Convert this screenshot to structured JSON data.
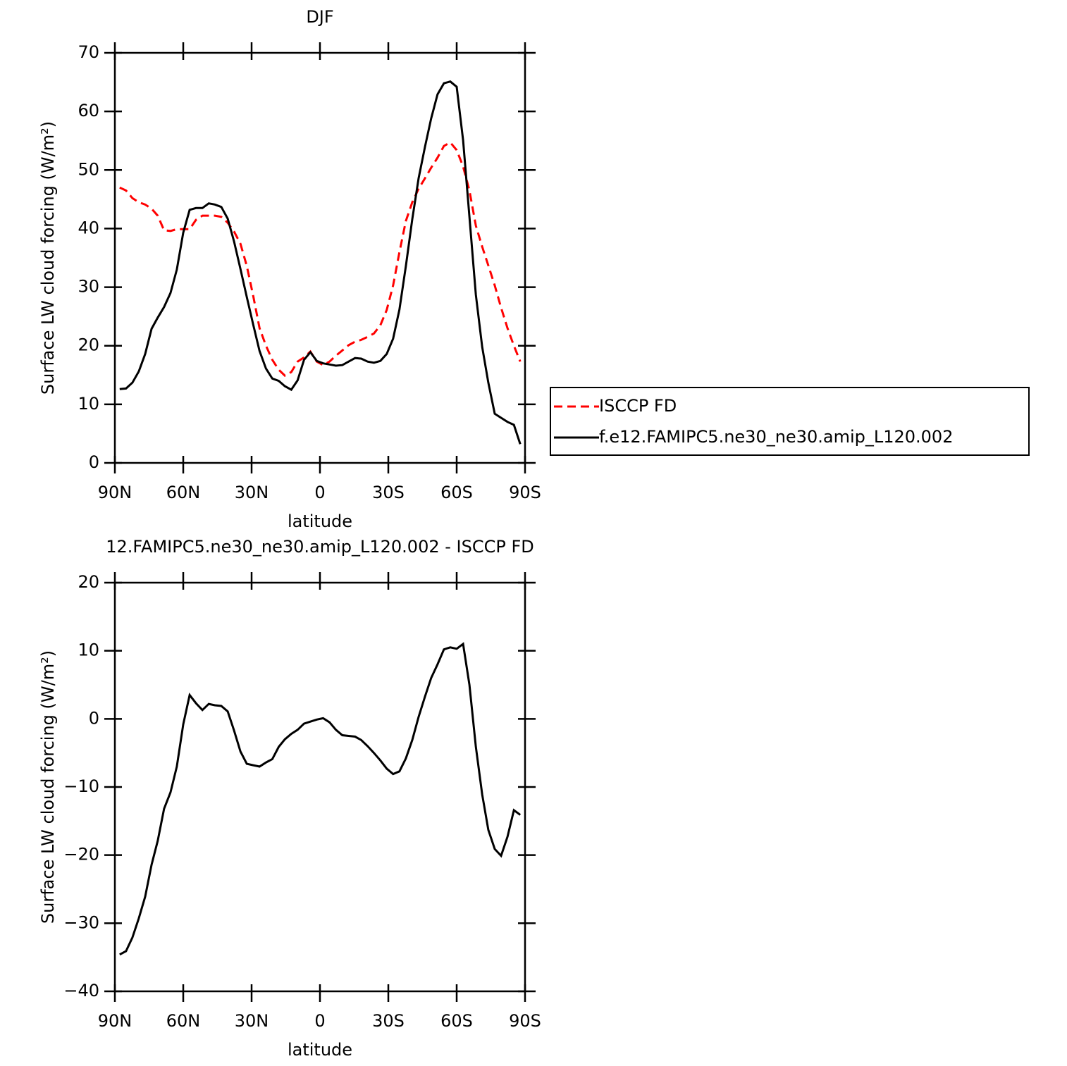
{
  "chart_data": [
    {
      "type": "line",
      "title": "DJF",
      "xlabel": "latitude",
      "ylabel": "Surface LW cloud forcing (W/m²)",
      "x": [
        87.9,
        85.1,
        82.3,
        79.5,
        76.7,
        73.9,
        71.2,
        68.4,
        65.6,
        62.8,
        60.0,
        57.2,
        54.4,
        51.6,
        48.8,
        46.1,
        43.3,
        40.5,
        37.7,
        34.9,
        32.1,
        29.3,
        26.5,
        23.7,
        20.9,
        18.1,
        15.4,
        12.6,
        9.8,
        7.0,
        4.2,
        1.4,
        -1.4,
        -4.2,
        -7.0,
        -9.8,
        -12.6,
        -15.4,
        -18.1,
        -20.9,
        -23.7,
        -26.5,
        -29.3,
        -32.1,
        -34.9,
        -37.7,
        -40.5,
        -43.3,
        -46.1,
        -48.8,
        -51.6,
        -54.4,
        -57.2,
        -60.0,
        -62.8,
        -65.6,
        -68.4,
        -71.2,
        -73.9,
        -76.7,
        -79.5,
        -82.3,
        -85.1,
        -87.9
      ],
      "series": [
        {
          "name": "ISCCP FD",
          "color": "#ff0000",
          "linestyle": "dashed",
          "values": [
            47.0,
            46.5,
            45.2,
            44.5,
            44.1,
            43.4,
            42.2,
            39.7,
            39.6,
            39.9,
            39.9,
            39.9,
            41.5,
            42.2,
            42.2,
            42.2,
            42.0,
            41.0,
            39.5,
            37.4,
            33.6,
            28.5,
            23.0,
            20.0,
            17.6,
            15.9,
            14.9,
            15.5,
            17.3,
            18.0,
            19.0,
            17.3,
            16.7,
            17.3,
            18.3,
            19.2,
            20.1,
            20.7,
            21.0,
            21.5,
            22.1,
            23.5,
            26.1,
            30.3,
            36.0,
            41.3,
            44.5,
            46.8,
            48.6,
            50.4,
            52.1,
            54.1,
            54.7,
            53.4,
            50.6,
            46.5,
            40.5,
            36.9,
            33.7,
            30.3,
            26.5,
            23.0,
            20.0,
            17.3
          ]
        },
        {
          "name": "f.e12.FAMIPC5.ne30_ne30.amip_L120.002",
          "color": "#000000",
          "linestyle": "solid",
          "values": [
            12.6,
            12.7,
            13.7,
            15.6,
            18.6,
            22.9,
            24.8,
            26.6,
            29.0,
            33.0,
            39.3,
            43.2,
            43.5,
            43.5,
            44.3,
            44.1,
            43.7,
            41.7,
            37.8,
            33.1,
            28.3,
            23.6,
            19.1,
            16.1,
            14.4,
            14.0,
            13.1,
            12.5,
            14.1,
            17.6,
            18.9,
            17.4,
            17.0,
            16.8,
            16.6,
            16.7,
            17.3,
            17.9,
            17.8,
            17.3,
            17.1,
            17.4,
            18.6,
            21.2,
            26.2,
            33.6,
            41.6,
            48.6,
            54.0,
            58.8,
            62.9,
            64.8,
            65.1,
            64.2,
            55.1,
            42.0,
            28.7,
            19.8,
            13.7,
            8.4,
            7.7,
            7.0,
            6.5,
            3.2
          ]
        }
      ],
      "xlim": [
        90,
        -90
      ],
      "xticks": [
        {
          "value": 90,
          "label": "90N"
        },
        {
          "value": 60,
          "label": "60N"
        },
        {
          "value": 30,
          "label": "30N"
        },
        0,
        {
          "value": -30,
          "label": "30S"
        },
        {
          "value": -60,
          "label": "60S"
        },
        {
          "value": -90,
          "label": "90S"
        }
      ],
      "ylim": [
        0,
        70
      ],
      "yticks": [
        0,
        10,
        20,
        30,
        40,
        50,
        60,
        70
      ],
      "legend": "outside right"
    },
    {
      "type": "line",
      "title": "12.FAMIPC5.ne30_ne30.amip_L120.002 - ISCCP FD",
      "xlabel": "latitude",
      "ylabel": "Surface LW cloud forcing (W/m²)",
      "x": [
        87.9,
        85.1,
        82.3,
        79.5,
        76.7,
        73.9,
        71.2,
        68.4,
        65.6,
        62.8,
        60.0,
        57.2,
        54.4,
        51.6,
        48.8,
        46.1,
        43.3,
        40.5,
        37.7,
        34.9,
        32.1,
        29.3,
        26.5,
        23.7,
        20.9,
        18.1,
        15.4,
        12.6,
        9.8,
        7.0,
        4.2,
        1.4,
        -1.4,
        -4.2,
        -7.0,
        -9.8,
        -12.6,
        -15.4,
        -18.1,
        -20.9,
        -23.7,
        -26.5,
        -29.3,
        -32.1,
        -34.9,
        -37.7,
        -40.5,
        -43.3,
        -46.1,
        -48.8,
        -51.6,
        -54.4,
        -57.2,
        -60.0,
        -62.8,
        -65.6,
        -68.4,
        -71.2,
        -73.9,
        -76.7,
        -79.5,
        -82.3,
        -85.1,
        -87.9
      ],
      "values": [
        -34.6,
        -34.1,
        -32.1,
        -29.3,
        -26.1,
        -21.4,
        -17.9,
        -13.2,
        -10.8,
        -7.0,
        -0.8,
        3.5,
        2.3,
        1.3,
        2.2,
        2.0,
        1.9,
        1.1,
        -1.7,
        -4.8,
        -6.6,
        -6.8,
        -7.0,
        -6.4,
        -5.9,
        -4.1,
        -3.0,
        -2.2,
        -1.6,
        -0.7,
        -0.4,
        -0.1,
        0.1,
        -0.5,
        -1.6,
        -2.4,
        -2.5,
        -2.6,
        -3.1,
        -4.0,
        -5.0,
        -6.1,
        -7.3,
        -8.1,
        -7.7,
        -5.8,
        -3.1,
        0.3,
        3.3,
        6.0,
        8.0,
        10.2,
        10.5,
        10.3,
        11.0,
        5.0,
        -4.1,
        -11.1,
        -16.3,
        -19.1,
        -20.1,
        -17.3,
        -13.4,
        -14.1
      ],
      "color": "#000000",
      "linestyle": "solid",
      "xlim": [
        90,
        -90
      ],
      "xticks": [
        {
          "value": 90,
          "label": "90N"
        },
        {
          "value": 60,
          "label": "60N"
        },
        {
          "value": 30,
          "label": "30N"
        },
        0,
        {
          "value": -30,
          "label": "30S"
        },
        {
          "value": -60,
          "label": "60S"
        },
        {
          "value": -90,
          "label": "90S"
        }
      ],
      "ylim": [
        -40,
        20
      ],
      "yticks": [
        {
          "value": -40,
          "label": "−40"
        },
        {
          "value": -30,
          "label": "−30"
        },
        {
          "value": -20,
          "label": "−20"
        },
        {
          "value": -10,
          "label": "−10"
        },
        0,
        10,
        20
      ]
    }
  ]
}
